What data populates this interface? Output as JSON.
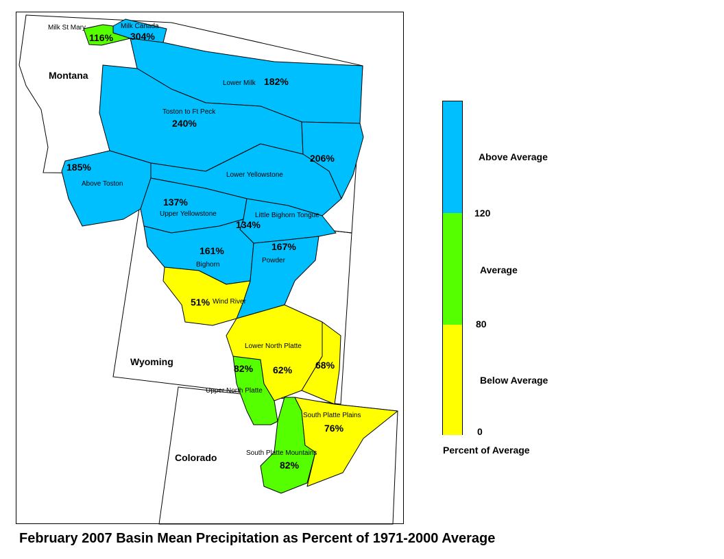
{
  "title": "February 2007 Basin Mean Precipitation as Percent of 1971-2000 Average",
  "colors": {
    "above": "#00BFFF",
    "average": "#55FF00",
    "below": "#FFFF00",
    "border": "#000000"
  },
  "states": [
    "Montana",
    "Wyoming",
    "Colorado"
  ],
  "legend": {
    "title": "Percent of Average",
    "categories": [
      "Above Average",
      "Average",
      "Below Average"
    ],
    "breaks": [
      "120",
      "80",
      "0"
    ]
  },
  "basins": [
    {
      "name": "Milk St Mary",
      "pct": "116%",
      "category": "average"
    },
    {
      "name": "Milk Canada",
      "pct": "304%",
      "category": "above"
    },
    {
      "name": "Lower Milk",
      "pct": "182%",
      "category": "above"
    },
    {
      "name": "Toston to Ft Peck",
      "pct": "240%",
      "category": "above"
    },
    {
      "name": "",
      "pct": "206%",
      "category": "above"
    },
    {
      "name": "Above Toston",
      "pct": "185%",
      "category": "above"
    },
    {
      "name": "Lower Yellowstone",
      "pct": "",
      "category": "above"
    },
    {
      "name": "Upper Yellowstone",
      "pct": "137%",
      "category": "above"
    },
    {
      "name": "Little Bighorn Tongue",
      "pct": "134%",
      "category": "above"
    },
    {
      "name": "Bighorn",
      "pct": "161%",
      "category": "above"
    },
    {
      "name": "Powder",
      "pct": "167%",
      "category": "above"
    },
    {
      "name": "Wind River",
      "pct": "51%",
      "category": "below"
    },
    {
      "name": "Lower North Platte",
      "pct": "62%",
      "category": "below"
    },
    {
      "name": "",
      "pct": "68%",
      "category": "below"
    },
    {
      "name": "Upper North Platte",
      "pct": "82%",
      "category": "average"
    },
    {
      "name": "South Platte Plains",
      "pct": "76%",
      "category": "below"
    },
    {
      "name": "South Platte Mountains",
      "pct": "82%",
      "category": "average"
    }
  ]
}
